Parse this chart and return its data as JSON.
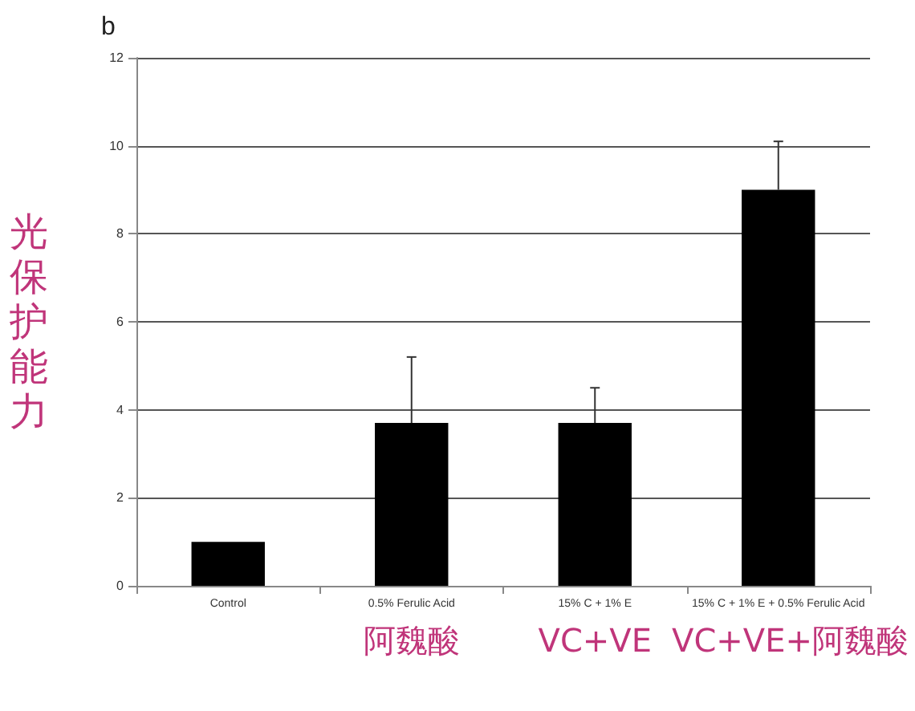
{
  "chart_data": {
    "type": "bar",
    "title": "b",
    "ylabel": "光保护能力",
    "categories": [
      "Control",
      "0.5% Ferulic Acid",
      "15% C + 1% E",
      "15% C + 1% E + 0.5% Ferulic Acid"
    ],
    "values": [
      1.0,
      3.7,
      3.7,
      9.0
    ],
    "errors": [
      null,
      1.5,
      0.8,
      1.1
    ],
    "color": "#000000",
    "ylim": [
      0,
      12
    ],
    "yticks": [
      0,
      2,
      4,
      6,
      8,
      10,
      12
    ],
    "grid": "y",
    "annotations": [
      "阿魏酸",
      "VC+VE",
      "VC+VE+阿魏酸"
    ]
  }
}
